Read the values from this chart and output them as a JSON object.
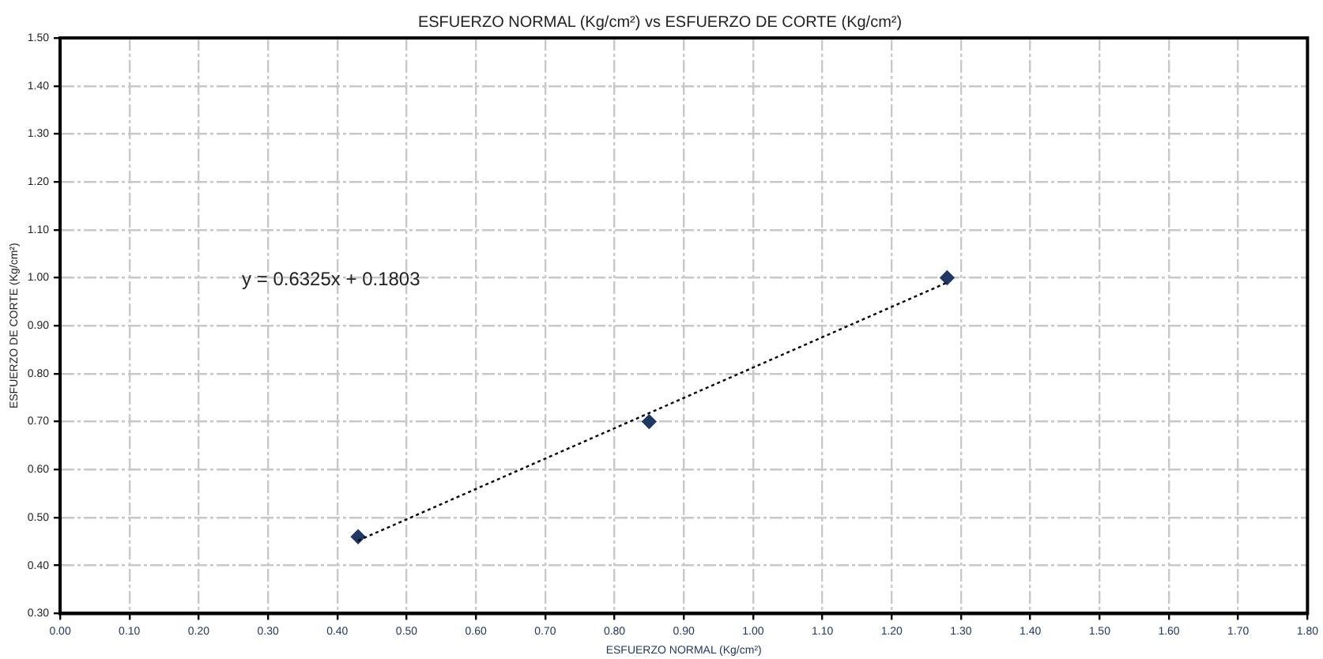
{
  "chart_data": {
    "type": "scatter",
    "title": "ESFUERZO NORMAL (Kg/cm²) vs ESFUERZO DE CORTE (Kg/cm²)",
    "xlabel": "ESFUERZO NORMAL (Kg/cm²)",
    "ylabel": "ESFUERZO DE CORTE (Kg/cm²)",
    "annotations": [
      "y = 0.6325x + 0.1803"
    ],
    "xlim": [
      0,
      1.8
    ],
    "ylim": [
      0.3,
      1.5
    ],
    "xticks": [
      {
        "value": 0,
        "label": "0.00"
      },
      {
        "value": 0.1,
        "label": "0.10"
      },
      {
        "value": 0.2,
        "label": "0.20"
      },
      {
        "value": 0.3,
        "label": "0.30"
      },
      {
        "value": 0.4,
        "label": "0.40"
      },
      {
        "value": 0.5,
        "label": "0.50"
      },
      {
        "value": 0.6,
        "label": "0.60"
      },
      {
        "value": 0.7,
        "label": "0.70"
      },
      {
        "value": 0.8,
        "label": "0.80"
      },
      {
        "value": 0.9,
        "label": "0.90"
      },
      {
        "value": 1,
        "label": "1.00"
      },
      {
        "value": 1.1,
        "label": "1.10"
      },
      {
        "value": 1.2,
        "label": "1.20"
      },
      {
        "value": 1.3,
        "label": "1.30"
      },
      {
        "value": 1.4,
        "label": "1.40"
      },
      {
        "value": 1.5,
        "label": "1.50"
      },
      {
        "value": 1.6,
        "label": "1.60"
      },
      {
        "value": 1.7,
        "label": "1.70"
      },
      {
        "value": 1.8,
        "label": "1.80"
      }
    ],
    "yticks": [
      {
        "value": 0.3,
        "label": "0.30"
      },
      {
        "value": 0.4,
        "label": "0.40"
      },
      {
        "value": 0.5,
        "label": "0.50"
      },
      {
        "value": 0.6,
        "label": "0.60"
      },
      {
        "value": 0.7,
        "label": "0.70"
      },
      {
        "value": 0.8,
        "label": "0.80"
      },
      {
        "value": 0.9,
        "label": "0.90"
      },
      {
        "value": 1,
        "label": "1.00"
      },
      {
        "value": 1.1,
        "label": "1.10"
      },
      {
        "value": 1.2,
        "label": "1.20"
      },
      {
        "value": 1.3,
        "label": "1.30"
      },
      {
        "value": 1.4,
        "label": "1.40"
      },
      {
        "value": 1.5,
        "label": "1.50"
      }
    ],
    "grid": true,
    "legend": false,
    "series": [
      {
        "type": "line",
        "color": "#000000",
        "x": [
          0.43,
          1.28
        ],
        "values": [
          0.452,
          0.99
        ],
        "line_style": "dotted",
        "marker": "none"
      },
      {
        "color": "#1f3864",
        "x": [
          0.43,
          0.85,
          1.28
        ],
        "values": [
          0.46,
          0.7,
          1.0
        ],
        "marker": "diamond"
      }
    ]
  }
}
